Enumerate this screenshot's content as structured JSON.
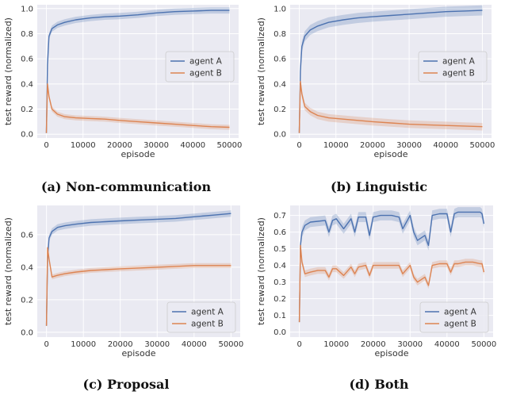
{
  "colors": {
    "agent_a": "#4c72b0",
    "agent_b": "#dd8452",
    "plot_bg": "#eaeaf2",
    "grid": "#ffffff"
  },
  "chart_data": [
    {
      "type": "line",
      "caption": "(a) Non-communication",
      "xlabel": "episode",
      "ylabel": "test reward (normalized)",
      "xlim": [
        -2500,
        52500
      ],
      "ylim": [
        -0.03,
        1.03
      ],
      "xticks": [
        0,
        10000,
        20000,
        30000,
        40000,
        50000
      ],
      "yticks": [
        0.0,
        0.2,
        0.4,
        0.6,
        0.8,
        1.0
      ],
      "ytick_labels": [
        "0.0",
        "0.2",
        "0.4",
        "0.6",
        "0.8",
        "1.0"
      ],
      "legend_position": "center-right",
      "grid": true,
      "series": [
        {
          "name": "agent A",
          "color": "#4c72b0",
          "x": [
            0,
            300,
            700,
            1500,
            3000,
            5000,
            8000,
            12000,
            16000,
            20000,
            25000,
            30000,
            35000,
            40000,
            45000,
            50000
          ],
          "y": [
            0.01,
            0.55,
            0.78,
            0.84,
            0.87,
            0.89,
            0.91,
            0.925,
            0.935,
            0.94,
            0.95,
            0.965,
            0.975,
            0.98,
            0.985,
            0.985
          ],
          "band": 0.025
        },
        {
          "name": "agent B",
          "color": "#dd8452",
          "x": [
            0,
            300,
            700,
            1500,
            3000,
            5000,
            8000,
            12000,
            16000,
            20000,
            25000,
            30000,
            35000,
            40000,
            45000,
            50000
          ],
          "y": [
            0.01,
            0.4,
            0.3,
            0.2,
            0.16,
            0.14,
            0.13,
            0.125,
            0.12,
            0.11,
            0.1,
            0.09,
            0.08,
            0.07,
            0.06,
            0.055
          ],
          "band": 0.02
        }
      ]
    },
    {
      "type": "line",
      "caption": "(b) Linguistic",
      "xlabel": "episode",
      "ylabel": "test reward (normalized)",
      "xlim": [
        -2500,
        52500
      ],
      "ylim": [
        -0.03,
        1.03
      ],
      "xticks": [
        0,
        10000,
        20000,
        30000,
        40000,
        50000
      ],
      "yticks": [
        0.0,
        0.2,
        0.4,
        0.6,
        0.8,
        1.0
      ],
      "ytick_labels": [
        "0.0",
        "0.2",
        "0.4",
        "0.6",
        "0.8",
        "1.0"
      ],
      "legend_position": "center-right",
      "grid": true,
      "series": [
        {
          "name": "agent A",
          "color": "#4c72b0",
          "x": [
            0,
            300,
            700,
            1500,
            3000,
            5000,
            8000,
            12000,
            16000,
            20000,
            25000,
            30000,
            35000,
            40000,
            45000,
            50000
          ],
          "y": [
            0.01,
            0.5,
            0.7,
            0.78,
            0.83,
            0.86,
            0.89,
            0.91,
            0.925,
            0.935,
            0.945,
            0.955,
            0.965,
            0.975,
            0.98,
            0.985
          ],
          "band": 0.04
        },
        {
          "name": "agent B",
          "color": "#dd8452",
          "x": [
            0,
            300,
            700,
            1500,
            3000,
            5000,
            8000,
            12000,
            16000,
            20000,
            25000,
            30000,
            35000,
            40000,
            45000,
            50000
          ],
          "y": [
            0.01,
            0.42,
            0.32,
            0.22,
            0.18,
            0.15,
            0.13,
            0.12,
            0.11,
            0.1,
            0.09,
            0.08,
            0.075,
            0.07,
            0.065,
            0.06
          ],
          "band": 0.03
        }
      ]
    },
    {
      "type": "line",
      "caption": "(c) Proposal",
      "xlabel": "episode",
      "ylabel": "test reward (normalized)",
      "xlim": [
        -2500,
        52500
      ],
      "ylim": [
        -0.03,
        0.78
      ],
      "xticks": [
        0,
        10000,
        20000,
        30000,
        40000,
        50000
      ],
      "yticks": [
        0.0,
        0.2,
        0.4,
        0.6
      ],
      "ytick_labels": [
        "0.0",
        "0.2",
        "0.4",
        "0.6"
      ],
      "legend_position": "lower-right",
      "grid": true,
      "series": [
        {
          "name": "agent A",
          "color": "#4c72b0",
          "x": [
            0,
            300,
            700,
            1500,
            3000,
            5000,
            8000,
            12000,
            16000,
            20000,
            25000,
            30000,
            35000,
            40000,
            45000,
            50000
          ],
          "y": [
            0.04,
            0.45,
            0.58,
            0.62,
            0.645,
            0.655,
            0.665,
            0.675,
            0.68,
            0.685,
            0.69,
            0.695,
            0.7,
            0.71,
            0.72,
            0.73
          ],
          "band": 0.02
        },
        {
          "name": "agent B",
          "color": "#dd8452",
          "x": [
            0,
            300,
            700,
            1500,
            3000,
            5000,
            8000,
            12000,
            16000,
            20000,
            25000,
            30000,
            35000,
            40000,
            45000,
            50000
          ],
          "y": [
            0.04,
            0.52,
            0.45,
            0.34,
            0.35,
            0.36,
            0.37,
            0.38,
            0.385,
            0.39,
            0.395,
            0.4,
            0.405,
            0.41,
            0.41,
            0.41
          ],
          "band": 0.015
        }
      ]
    },
    {
      "type": "line",
      "caption": "(d) Both",
      "xlabel": "episode",
      "ylabel": "test reward (normalized)",
      "xlim": [
        -2500,
        52500
      ],
      "ylim": [
        -0.03,
        0.76
      ],
      "xticks": [
        0,
        10000,
        20000,
        30000,
        40000,
        50000
      ],
      "yticks": [
        0.0,
        0.1,
        0.2,
        0.3,
        0.4,
        0.5,
        0.6,
        0.7
      ],
      "ytick_labels": [
        "0.0",
        "0.1",
        "0.2",
        "0.3",
        "0.4",
        "0.5",
        "0.6",
        "0.7"
      ],
      "legend_position": "lower-right",
      "grid": true,
      "series": [
        {
          "name": "agent A",
          "color": "#4c72b0",
          "x": [
            0,
            300,
            700,
            1500,
            3000,
            5000,
            7000,
            8000,
            9000,
            10000,
            12000,
            14000,
            15000,
            16000,
            18000,
            19000,
            20000,
            22000,
            25000,
            27000,
            28000,
            30000,
            31000,
            32000,
            34000,
            35000,
            36000,
            38000,
            40000,
            41000,
            42000,
            43000,
            45000,
            47000,
            49000,
            49500,
            50000
          ],
          "y": [
            0.06,
            0.52,
            0.6,
            0.64,
            0.66,
            0.665,
            0.67,
            0.6,
            0.67,
            0.68,
            0.62,
            0.68,
            0.6,
            0.69,
            0.69,
            0.58,
            0.69,
            0.7,
            0.7,
            0.69,
            0.62,
            0.7,
            0.6,
            0.55,
            0.58,
            0.52,
            0.7,
            0.71,
            0.71,
            0.6,
            0.71,
            0.72,
            0.72,
            0.72,
            0.72,
            0.71,
            0.65
          ],
          "band": 0.03
        },
        {
          "name": "agent B",
          "color": "#dd8452",
          "x": [
            0,
            300,
            700,
            1500,
            3000,
            5000,
            7000,
            8000,
            9000,
            10000,
            12000,
            14000,
            15000,
            16000,
            18000,
            19000,
            20000,
            22000,
            25000,
            27000,
            28000,
            30000,
            31000,
            32000,
            34000,
            35000,
            36000,
            38000,
            40000,
            41000,
            42000,
            43000,
            45000,
            47000,
            49000,
            49500,
            50000
          ],
          "y": [
            0.06,
            0.52,
            0.42,
            0.35,
            0.36,
            0.37,
            0.37,
            0.33,
            0.38,
            0.38,
            0.34,
            0.39,
            0.35,
            0.39,
            0.4,
            0.34,
            0.4,
            0.4,
            0.4,
            0.4,
            0.35,
            0.4,
            0.33,
            0.3,
            0.33,
            0.28,
            0.4,
            0.41,
            0.41,
            0.36,
            0.41,
            0.41,
            0.42,
            0.42,
            0.41,
            0.41,
            0.36
          ],
          "band": 0.02
        }
      ]
    }
  ]
}
